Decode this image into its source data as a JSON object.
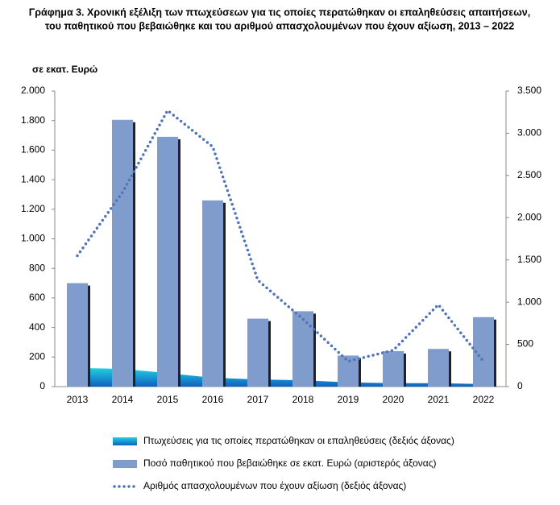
{
  "chart_data": {
    "type": "combo",
    "title": [
      "Γράφημα 3. Χρονική εξέλιξη των πτωχεύσεων για τις οποίες περατώθηκαν οι επαληθεύσεις απαιτήσεων,",
      "του παθητικού που βεβαιώθηκε και του αριθμού απασχολουμένων που έχουν αξίωση, 2013 – 2022"
    ],
    "y_label": "σε εκατ. Ευρώ",
    "categories": [
      "2013",
      "2014",
      "2015",
      "2016",
      "2017",
      "2018",
      "2019",
      "2020",
      "2021",
      "2022"
    ],
    "ylim": [
      0,
      2000
    ],
    "yticks": [
      0,
      200,
      400,
      600,
      800,
      {
        "value": 1000,
        "label": "1.000"
      },
      {
        "value": 1200,
        "label": "1.200"
      },
      {
        "value": 1400,
        "label": "1.400"
      },
      {
        "value": 1600,
        "label": "1.600"
      },
      {
        "value": 1800,
        "label": "1.800"
      },
      {
        "value": 2000,
        "label": "2.000"
      }
    ],
    "y2lim": [
      0,
      3500
    ],
    "y2ticks": [
      0,
      500,
      {
        "value": 1000,
        "label": "1.000"
      },
      {
        "value": 1500,
        "label": "1.500"
      },
      {
        "value": 2000,
        "label": "2.000"
      },
      {
        "value": 2500,
        "label": "2.500"
      },
      {
        "value": 3000,
        "label": "3.000"
      },
      {
        "value": 3500,
        "label": "3.500"
      }
    ],
    "series": [
      {
        "name": "Πτωχεύσεις για τις οποίες περατώθηκαν οι επαληθεύσεις (δεξιός άξονας)",
        "type": "area",
        "axis": "y2",
        "color": "#1aa8d8",
        "values": [
          220,
          210,
          160,
          105,
          85,
          75,
          50,
          40,
          40,
          30
        ]
      },
      {
        "name": "Ποσό παθητικού που βεβαιώθηκε σε εκατ. Ευρώ (αριστερός άξονας)",
        "type": "bar",
        "color": "#7f9ccc",
        "values": [
          700,
          1805,
          1690,
          1260,
          460,
          510,
          210,
          240,
          255,
          470
        ]
      },
      {
        "name": "Αριθμός απασχολουμένων που έχουν αξίωση (δεξιός άξονας)",
        "type": "line",
        "axis": "y2",
        "color": "#4f74b8",
        "values": [
          1550,
          2300,
          3270,
          2840,
          1260,
          800,
          300,
          430,
          970,
          300
        ]
      }
    ]
  }
}
